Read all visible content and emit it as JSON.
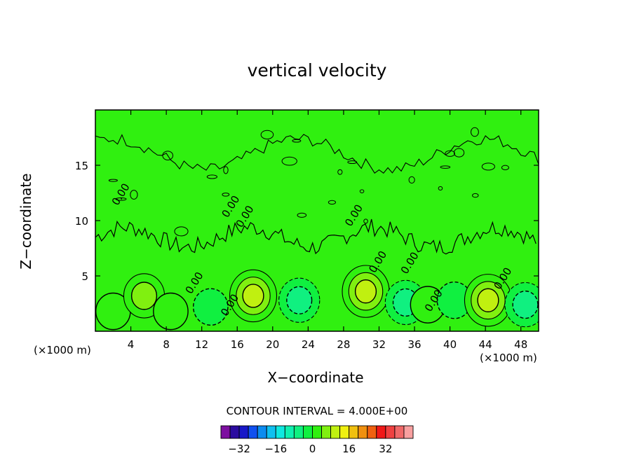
{
  "chart_data": {
    "type": "heatmap",
    "title": "vertical velocity",
    "xlabel": "X−coordinate",
    "ylabel": "Z−coordinate",
    "x_unit_left": "(×1000 m)",
    "x_unit_right": "(×1000 m)",
    "xlim": [
      0,
      50
    ],
    "ylim": [
      0,
      20
    ],
    "xticks": [
      4,
      8,
      12,
      16,
      20,
      24,
      28,
      32,
      36,
      40,
      44,
      48
    ],
    "xtick_labels": [
      "4",
      "8",
      "12",
      "16",
      "20",
      "24",
      "28",
      "32",
      "36",
      "40",
      "44",
      "48"
    ],
    "yticks": [
      5,
      10,
      15
    ],
    "ytick_labels": [
      "5",
      "10",
      "15"
    ],
    "contour_interval_text": "CONTOUR INTERVAL = 4.000E+00",
    "contour_interval": 4,
    "contour_labels": [
      "0.00",
      "0.00",
      "0.00",
      "0.00",
      "0.00",
      "0.00",
      "0.00",
      "0.00",
      "0.00",
      "0.00"
    ],
    "colorbar": {
      "levels": [
        -36,
        -32,
        -28,
        -24,
        -20,
        -16,
        -12,
        -8,
        -4,
        0,
        4,
        8,
        12,
        16,
        20,
        24,
        28,
        32,
        36
      ],
      "colors": [
        "#7d0fa0",
        "#2b0ba0",
        "#1818c8",
        "#1050f0",
        "#0c8cf0",
        "#10c0f0",
        "#10e8e0",
        "#10f0b0",
        "#10f080",
        "#10f040",
        "#30f010",
        "#80f010",
        "#c0f010",
        "#f0f010",
        "#f0c010",
        "#f09010",
        "#f06010",
        "#f01818",
        "#f04040",
        "#f06868",
        "#f8a0a0"
      ],
      "tick_values": [
        -32,
        -16,
        0,
        16,
        32
      ],
      "tick_labels": [
        "−32",
        "−16",
        "0",
        "16",
        "32"
      ]
    },
    "cells": [
      {
        "x": 2,
        "z": 1.8,
        "value": 4
      },
      {
        "x": 5.5,
        "z": 3.2,
        "value": 8
      },
      {
        "x": 8.5,
        "z": 1.8,
        "value": 4
      },
      {
        "x": 13,
        "z": 2.2,
        "value": -4
      },
      {
        "x": 17.8,
        "z": 3.2,
        "value": 12
      },
      {
        "x": 23,
        "z": 2.8,
        "value": -8
      },
      {
        "x": 30.5,
        "z": 3.6,
        "value": 12
      },
      {
        "x": 35,
        "z": 2.6,
        "value": -8
      },
      {
        "x": 37.5,
        "z": 2.4,
        "value": 4
      },
      {
        "x": 40.5,
        "z": 2.8,
        "value": -4
      },
      {
        "x": 44.3,
        "z": 2.8,
        "value": 12
      },
      {
        "x": 48.5,
        "z": 2.4,
        "value": -8
      }
    ],
    "grid": false
  }
}
